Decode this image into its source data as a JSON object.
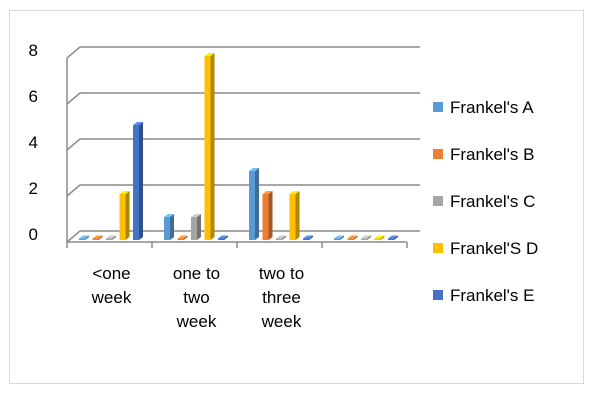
{
  "chart_data": {
    "type": "bar",
    "style": "3d-clustered-column",
    "title": "",
    "xlabel": "",
    "ylabel": "",
    "ylim": [
      0,
      8
    ],
    "y_ticks": [
      "0",
      "2",
      "4",
      "6",
      "8"
    ],
    "grid": true,
    "legend_position": "right",
    "categories": [
      [
        "<one",
        "week"
      ],
      [
        "one to",
        "two",
        "week"
      ],
      [
        "two to",
        "three",
        "week"
      ],
      []
    ],
    "series": [
      {
        "name": "Frankel's A",
        "color": "#5b9bd5",
        "values": [
          0,
          1,
          3,
          0
        ]
      },
      {
        "name": "Frankel's B",
        "color": "#ed7d31",
        "values": [
          0,
          0,
          2,
          0
        ]
      },
      {
        "name": "Frankel's C",
        "color": "#a5a5a5",
        "values": [
          0,
          1,
          0,
          0
        ]
      },
      {
        "name": "Frankel'S D",
        "color": "#ffc000",
        "values": [
          2,
          8,
          2,
          0
        ]
      },
      {
        "name": "Frankel's E",
        "color": "#4472c4",
        "values": [
          5,
          0,
          0,
          0
        ]
      }
    ]
  }
}
